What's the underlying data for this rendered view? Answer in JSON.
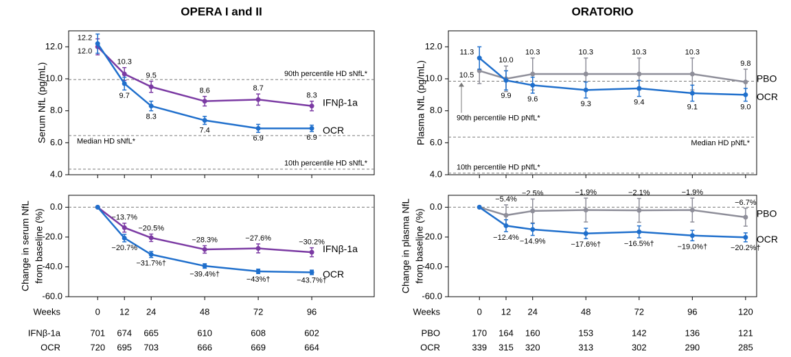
{
  "chart_data": [
    {
      "type": "line",
      "title": "OPERA I and II",
      "ylabel": [
        "Serum NfL (pg/mL)"
      ],
      "x": [
        0,
        12,
        24,
        48,
        72,
        96
      ],
      "xlim": [
        -13,
        124
      ],
      "xticks": [
        0,
        12,
        24,
        48,
        72,
        96
      ],
      "ylim": [
        4,
        13
      ],
      "yticks": [
        {
          "value": 4,
          "label": "4.0"
        },
        {
          "value": 6,
          "label": "6.0"
        },
        {
          "value": 8,
          "label": "8.0"
        },
        {
          "value": 10,
          "label": "10.0"
        },
        {
          "value": 12,
          "label": "12.0"
        }
      ],
      "reference_lines": [
        {
          "value": 9.95,
          "label": "90th percentile HD sNfL*"
        },
        {
          "value": 6.45,
          "label": "Median HD sNfL*"
        },
        {
          "value": 4.35,
          "label": "10th percentile HD sNfL*"
        }
      ],
      "series": [
        {
          "name": "IFNβ-1a",
          "color": "#7b3aa3",
          "values": [
            12.0,
            10.3,
            9.5,
            8.6,
            8.7,
            8.3
          ],
          "errors": [
            0.5,
            0.4,
            0.35,
            0.3,
            0.35,
            0.3
          ],
          "value_labels": [
            "12.0",
            "10.3",
            "9.5",
            "8.6",
            "8.7",
            "8.3"
          ]
        },
        {
          "name": "OCR",
          "color": "#1f6fcc",
          "values": [
            12.2,
            9.7,
            8.3,
            7.4,
            6.9,
            6.9
          ],
          "errors": [
            0.6,
            0.4,
            0.3,
            0.25,
            0.25,
            0.2
          ],
          "value_labels": [
            "12.2",
            "9.7",
            "8.3",
            "7.4",
            "6.9",
            "6.9"
          ]
        }
      ]
    },
    {
      "type": "line",
      "ylabel": [
        "Change in serum NfL",
        "from baseline (%)"
      ],
      "xlabel": "Weeks",
      "x": [
        0,
        12,
        24,
        48,
        72,
        96
      ],
      "xlim": [
        -13,
        124
      ],
      "xticks": [
        0,
        12,
        24,
        48,
        72,
        96
      ],
      "ylim": [
        -60,
        8
      ],
      "yticks": [
        {
          "value": -60,
          "label": "-60.0"
        },
        {
          "value": -40,
          "label": "-40.0"
        },
        {
          "value": -20,
          "label": "-20.0"
        },
        {
          "value": 0,
          "label": "0.0"
        }
      ],
      "reference_lines": [
        {
          "value": 0
        }
      ],
      "series": [
        {
          "name": "IFNβ-1a",
          "color": "#7b3aa3",
          "values": [
            0,
            -13.7,
            -20.5,
            -28.3,
            -27.6,
            -30.2
          ],
          "errors": [
            0,
            3,
            2.5,
            2.5,
            3,
            3
          ],
          "value_labels": [
            null,
            "−13.7%",
            "−20.5%",
            "−28.3%",
            "−27.6%",
            "−30.2%"
          ],
          "n_at_risk": [
            701,
            674,
            665,
            610,
            608,
            602
          ]
        },
        {
          "name": "OCR",
          "color": "#1f6fcc",
          "values": [
            0,
            -20.7,
            -31.7,
            -39.4,
            -43,
            -43.7
          ],
          "errors": [
            0,
            2.5,
            2,
            1.5,
            1.5,
            1.5
          ],
          "value_labels": [
            null,
            "−20.7%",
            "−31.7%†",
            "−39.4%†",
            "−43%†",
            "−43.7%†"
          ],
          "n_at_risk": [
            720,
            695,
            703,
            666,
            669,
            664
          ]
        }
      ]
    },
    {
      "type": "line",
      "title": "ORATORIO",
      "ylabel": [
        "Plasma NfL (pg/mL)"
      ],
      "x": [
        0,
        12,
        24,
        48,
        72,
        96,
        120
      ],
      "xlim": [
        -14,
        125
      ],
      "xticks": [
        0,
        12,
        24,
        48,
        72,
        96,
        120
      ],
      "ylim": [
        4,
        13
      ],
      "yticks": [
        {
          "value": 4,
          "label": "4.0"
        },
        {
          "value": 6,
          "label": "6.0"
        },
        {
          "value": 8,
          "label": "8.0"
        },
        {
          "value": 10,
          "label": "10.0"
        },
        {
          "value": 12,
          "label": "12.0"
        }
      ],
      "reference_lines": [
        {
          "value": 9.85,
          "label": "90th percentile HD pNfL*"
        },
        {
          "value": 6.35,
          "label": "Median HD pNfL*"
        },
        {
          "value": 4.1,
          "label": "10th percentile HD pNfL*"
        }
      ],
      "series": [
        {
          "name": "PBO",
          "color": "#8e8e99",
          "values": [
            10.5,
            10.0,
            10.3,
            10.3,
            10.3,
            10.3,
            9.8
          ],
          "errors": [
            0.8,
            0.8,
            1.0,
            1.0,
            1.0,
            1.0,
            0.8
          ],
          "value_labels": [
            "10.5",
            "10.0",
            "10.3",
            "10.3",
            "10.3",
            "10.3",
            "9.8"
          ]
        },
        {
          "name": "OCR",
          "color": "#1f6fcc",
          "values": [
            11.3,
            9.9,
            9.6,
            9.3,
            9.4,
            9.1,
            9.0
          ],
          "errors": [
            0.7,
            0.6,
            0.5,
            0.5,
            0.5,
            0.5,
            0.4
          ],
          "value_labels": [
            "11.3",
            "9.9",
            "9.6",
            "9.3",
            "9.4",
            "9.1",
            "9.0"
          ]
        }
      ]
    },
    {
      "type": "line",
      "ylabel": [
        "Change in plasma NfL",
        "from baseline (%)"
      ],
      "xlabel": "Weeks",
      "x": [
        0,
        12,
        24,
        48,
        72,
        96,
        120
      ],
      "xlim": [
        -14,
        125
      ],
      "xticks": [
        0,
        12,
        24,
        48,
        72,
        96,
        120
      ],
      "ylim": [
        -60,
        8
      ],
      "yticks": [
        {
          "value": -60,
          "label": "-60.0"
        },
        {
          "value": -40,
          "label": "-40.0"
        },
        {
          "value": -20,
          "label": "-20.0"
        },
        {
          "value": 0,
          "label": "0.0"
        }
      ],
      "reference_lines": [
        {
          "value": 0
        }
      ],
      "series": [
        {
          "name": "PBO",
          "color": "#8e8e99",
          "values": [
            0,
            -5.4,
            -2.5,
            -1.9,
            -2.1,
            -1.9,
            -6.7
          ],
          "errors": [
            0,
            7,
            8,
            8,
            8,
            8,
            6
          ],
          "value_labels": [
            null,
            "−5.4%",
            "−2.5%",
            "−1.9%",
            "−2.1%",
            "−1.9%",
            "−6.7%"
          ],
          "n_at_risk": [
            170,
            164,
            160,
            153,
            142,
            136,
            121
          ]
        },
        {
          "name": "OCR",
          "color": "#1f6fcc",
          "values": [
            0,
            -12.4,
            -14.9,
            -17.6,
            -16.5,
            -19.0,
            -20.2
          ],
          "errors": [
            0,
            4,
            4,
            3.5,
            4,
            3.5,
            3
          ],
          "value_labels": [
            null,
            "−12.4%",
            "−14.9%",
            "−17.6%†",
            "−16.5%†",
            "−19.0%†",
            "−20.2%†"
          ],
          "n_at_risk": [
            339,
            315,
            320,
            313,
            302,
            290,
            285
          ]
        }
      ]
    }
  ]
}
